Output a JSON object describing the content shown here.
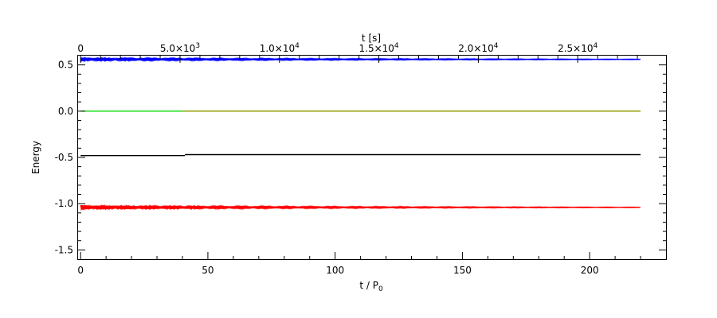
{
  "chart_data": {
    "type": "line",
    "title": "",
    "xlabel": "t / P",
    "xlabel_sub": "0",
    "ylabel": "Energy",
    "top_xlabel": "t [s]",
    "xlim": [
      -1,
      230
    ],
    "ylim": [
      -1.6,
      0.6
    ],
    "xticks": [
      0,
      50,
      100,
      150,
      200
    ],
    "yticks": [
      0.5,
      0.0,
      -0.5,
      -1.0,
      -1.5
    ],
    "ytick_labels": [
      "0.5",
      "0.0",
      "-0.5",
      "-1.0",
      "-1.5"
    ],
    "top_axis": {
      "scale_factor": 128.0,
      "ticks": [
        {
          "value": 0,
          "mantissa": "0",
          "exponent": ""
        },
        {
          "value": 5000,
          "mantissa": "5.0×10",
          "exponent": "3"
        },
        {
          "value": 10000,
          "mantissa": "1.0×10",
          "exponent": "4"
        },
        {
          "value": 15000,
          "mantissa": "1.5×10",
          "exponent": "4"
        },
        {
          "value": 20000,
          "mantissa": "2.0×10",
          "exponent": "4"
        },
        {
          "value": 25000,
          "mantissa": "2.5×10",
          "exponent": "4"
        }
      ]
    },
    "grid": false,
    "series": [
      {
        "color": "#0000ff",
        "kind": "oscillating",
        "mean": 0.56,
        "amp_start": 0.02,
        "amp_end": 0.004,
        "period": 3.2,
        "x_end": 220
      },
      {
        "color": "#ff0000",
        "kind": "oscillating",
        "mean": -1.04,
        "amp_start": 0.025,
        "amp_end": 0.004,
        "period": 3.2,
        "x_end": 220
      },
      {
        "color": "#00dd00",
        "kind": "flat",
        "segments": [
          {
            "x": [
              0,
              220
            ],
            "y": 0.0
          }
        ],
        "x_end": 220
      },
      {
        "color": "#999900",
        "kind": "flat",
        "segments": [
          {
            "x": [
              40,
              220
            ],
            "y": 0.0
          }
        ],
        "x_end": 220
      },
      {
        "color": "#000000",
        "kind": "flat",
        "segments": [
          {
            "x": [
              0,
              41
            ],
            "y": -0.48
          },
          {
            "x": [
              41,
              220
            ],
            "y": -0.47
          }
        ],
        "x_end": 220
      }
    ]
  }
}
